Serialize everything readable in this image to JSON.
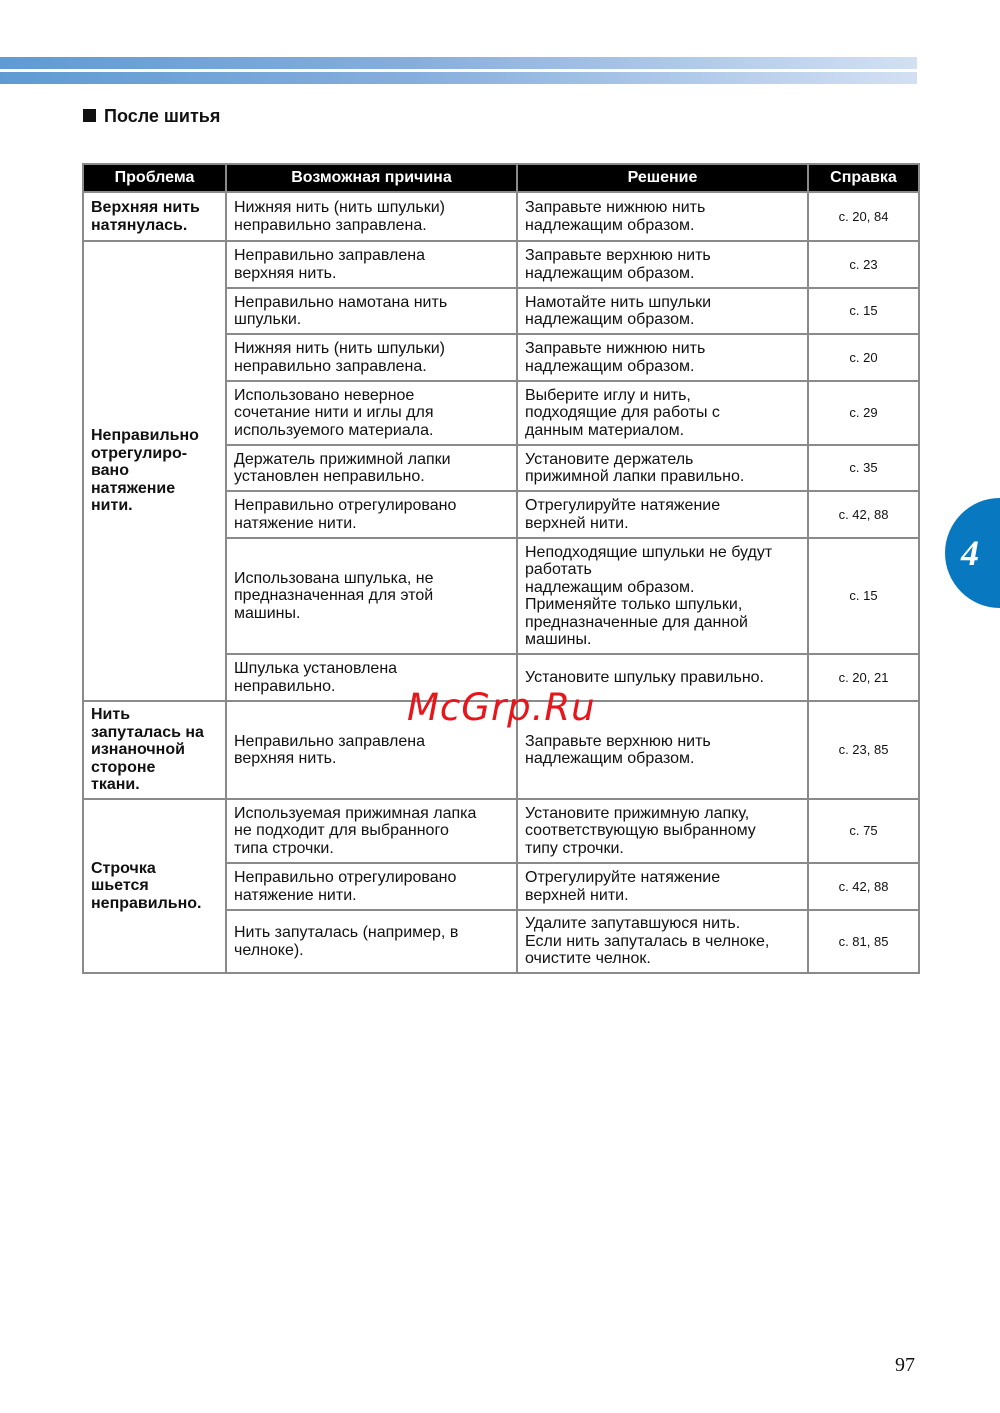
{
  "section_title": "После шитья",
  "headers": [
    "Проблема",
    "Возможная причина",
    "Решение",
    "Справка"
  ],
  "groups": [
    {
      "problem": "Верхняя нить\nнатянулась.",
      "rows": [
        {
          "cause": "Нижняя нить (нить шпульки)\nнеправильно заправлена.",
          "solution": "Заправьте нижнюю нить\nнадлежащим образом.",
          "ref": "с. 20, 84"
        }
      ]
    },
    {
      "problem": "Неправильно\nотрегулиро-\nвано\nнатяжение\nнити.",
      "rows": [
        {
          "cause": "Неправильно заправлена\nверхняя нить.",
          "solution": "Заправьте верхнюю нить\nнадлежащим образом.",
          "ref": "с. 23"
        },
        {
          "cause": "Неправильно намотана нить\nшпульки.",
          "solution": "Намотайте нить шпульки\nнадлежащим образом.",
          "ref": "с. 15"
        },
        {
          "cause": "Нижняя нить (нить шпульки)\nнеправильно заправлена.",
          "solution": "Заправьте нижнюю нить\nнадлежащим образом.",
          "ref": "с. 20"
        },
        {
          "cause": "Использовано неверное\nсочетание нити и иглы для\nиспользуемого материала.",
          "solution": "Выберите иглу и нить,\nподходящие для работы с\nданным материалом.",
          "ref": "с. 29"
        },
        {
          "cause": "Держатель прижимной лапки\nустановлен неправильно.",
          "solution": "Установите держатель\nприжимной лапки правильно.",
          "ref": "с. 35"
        },
        {
          "cause": "Неправильно отрегулировано\nнатяжение нити.",
          "solution": "Отрегулируйте натяжение\nверхней нити.",
          "ref": "с. 42, 88"
        },
        {
          "cause": "Использована шпулька, не\nпредназначенная для этой\nмашины.",
          "solution": "Неподходящие шпульки не будут\nработать\nнадлежащим образом.\nПрименяйте только шпульки,\nпредназначенные для данной\nмашины.",
          "ref": "с. 15"
        },
        {
          "cause": "Шпулька установлена\nнеправильно.",
          "solution": "Установите шпульку правильно.",
          "ref": "с. 20, 21"
        }
      ]
    },
    {
      "problem": "Нить\nзапуталась на\nизнаночной\nстороне\nткани.",
      "rows": [
        {
          "cause": "Неправильно заправлена\nверхняя нить.",
          "solution": "Заправьте верхнюю нить\nнадлежащим образом.",
          "ref": "с. 23, 85"
        }
      ]
    },
    {
      "problem": "Строчка\nшьется\nнеправильно.",
      "rows": [
        {
          "cause": "Используемая прижимная лапка\nне подходит для выбранного\nтипа строчки.",
          "solution": "Установите прижимную лапку,\nсоответствующую выбранному\nтипу строчки.",
          "ref": "с. 75"
        },
        {
          "cause": "Неправильно отрегулировано\nнатяжение нити.",
          "solution": "Отрегулируйте натяжение\nверхней нити.",
          "ref": "с. 42, 88"
        },
        {
          "cause": "Нить запуталась (например, в\nчелноке).",
          "solution": "Удалите запутавшуюся нить.\nЕсли нить запуталась в челноке,\nочистите челнок.",
          "ref": "с. 81, 85"
        }
      ]
    }
  ],
  "chapter_tab": "4",
  "page_number": "97",
  "watermark": "McGrp.Ru",
  "colors": {
    "accent": "#0878c1",
    "watermark": "#e8151b"
  }
}
